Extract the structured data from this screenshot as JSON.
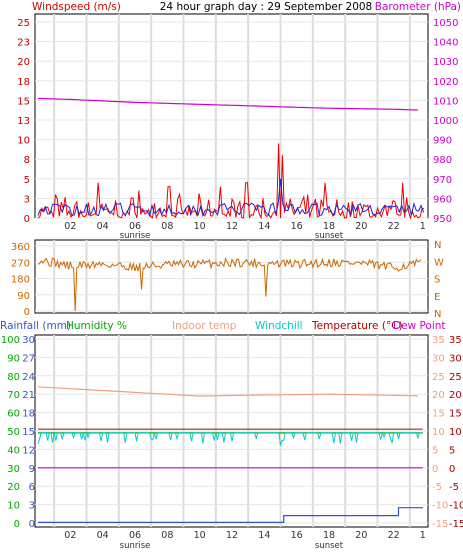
{
  "chart_data": [
    {
      "type": "line",
      "panel": "wind-baro",
      "title": "24 hour graph day : 29 September 2008",
      "left_label": "Windspeed (m/s)",
      "right_label": "Barometer (hPa)",
      "left_ticks": [
        "25",
        "23",
        "20",
        "18",
        "15",
        "13",
        "10",
        "8",
        "5",
        "3",
        "0"
      ],
      "right_ticks": [
        "1050",
        "1040",
        "1030",
        "1020",
        "1010",
        "1000",
        "990",
        "980",
        "970",
        "960",
        "950"
      ],
      "x_ticks": [
        "02",
        "04",
        "06",
        "08",
        "10",
        "12",
        "14",
        "16",
        "18",
        "20",
        "22",
        "1"
      ],
      "sunrise_label": "sunrise",
      "sunset_label": "sunset",
      "ylim_left": [
        0,
        25
      ],
      "ylim_right": [
        950,
        1050
      ],
      "barometer_hpa": {
        "hours": [
          0,
          2,
          6,
          10,
          14,
          18,
          22,
          23.8
        ],
        "values": [
          1011,
          1010.5,
          1009,
          1008,
          1007,
          1006,
          1005.5,
          1005
        ]
      },
      "wind_gust_peaks": [
        {
          "hour": 1.1,
          "value": 3
        },
        {
          "hour": 3.7,
          "value": 4.5
        },
        {
          "hour": 6.2,
          "value": 3.5
        },
        {
          "hour": 8.1,
          "value": 4
        },
        {
          "hour": 11.3,
          "value": 4
        },
        {
          "hour": 12.9,
          "value": 4.5
        },
        {
          "hour": 14.9,
          "value": 9.5
        },
        {
          "hour": 15.1,
          "value": 8
        },
        {
          "hour": 17.8,
          "value": 4.5
        },
        {
          "hour": 22.6,
          "value": 4.5
        }
      ],
      "wind_avg_peak": {
        "hour": 15.0,
        "value": 5
      }
    },
    {
      "type": "line",
      "panel": "direction",
      "left_ticks": [
        "360",
        "270",
        "180",
        "90",
        "0"
      ],
      "right_ticks": [
        "N",
        "W",
        "S",
        "E",
        "N"
      ],
      "ylim": [
        0,
        360
      ],
      "direction_deg": {
        "hours": [
          0,
          2,
          4,
          6,
          8,
          10,
          12,
          14,
          16,
          18,
          20,
          22,
          23.8
        ],
        "values": [
          285,
          250,
          260,
          245,
          255,
          260,
          270,
          265,
          260,
          270,
          265,
          240,
          270
        ]
      },
      "direction_dips": [
        {
          "hour": 2.3,
          "value": 0
        },
        {
          "hour": 6.4,
          "value": 120
        },
        {
          "hour": 14.1,
          "value": 80
        }
      ]
    },
    {
      "type": "line",
      "panel": "temperature",
      "legend": [
        "Rainfall (mm)",
        "Humidity %",
        "Indoor temp",
        "Windchill",
        "Temperature (°C)",
        "Dew Point"
      ],
      "legend_colors": [
        "#3355cc",
        "#00aa00",
        "#f0a080",
        "#00cccc",
        "#aa0000",
        "#cc00cc"
      ],
      "rain_ticks": [
        "30",
        "27",
        "24",
        "21",
        "18",
        "15",
        "12",
        "9",
        "6",
        "3",
        "0"
      ],
      "humidity_ticks": [
        "100",
        "90",
        "80",
        "70",
        "60",
        "50",
        "40",
        "30",
        "20",
        "10",
        "0"
      ],
      "temp_ticks_right": [
        "35",
        "30",
        "25",
        "20",
        "15",
        "10",
        "5",
        "0",
        "-5",
        "-10",
        "-15"
      ],
      "temp_ticks_right2": [
        "35",
        "30",
        "25",
        "20",
        "15",
        "10",
        "5",
        "0",
        "-5",
        "-10",
        "-15"
      ],
      "temp_range": [
        -15,
        35
      ],
      "indoor_temp": {
        "hours": [
          0,
          4,
          8,
          10,
          14,
          18,
          22,
          23.8
        ],
        "values": [
          22,
          21,
          20,
          19.5,
          19.8,
          20,
          19.7,
          19.5
        ]
      },
      "temperature": 10.5,
      "windchill": 9.5,
      "humidity": 49,
      "dew_point": 0,
      "rainfall_mm": {
        "hours": [
          0,
          15.2,
          15.2,
          22.3,
          22.3,
          23.8
        ],
        "values": [
          0.1,
          0.1,
          1.2,
          1.2,
          2.5,
          2.5
        ]
      }
    }
  ]
}
